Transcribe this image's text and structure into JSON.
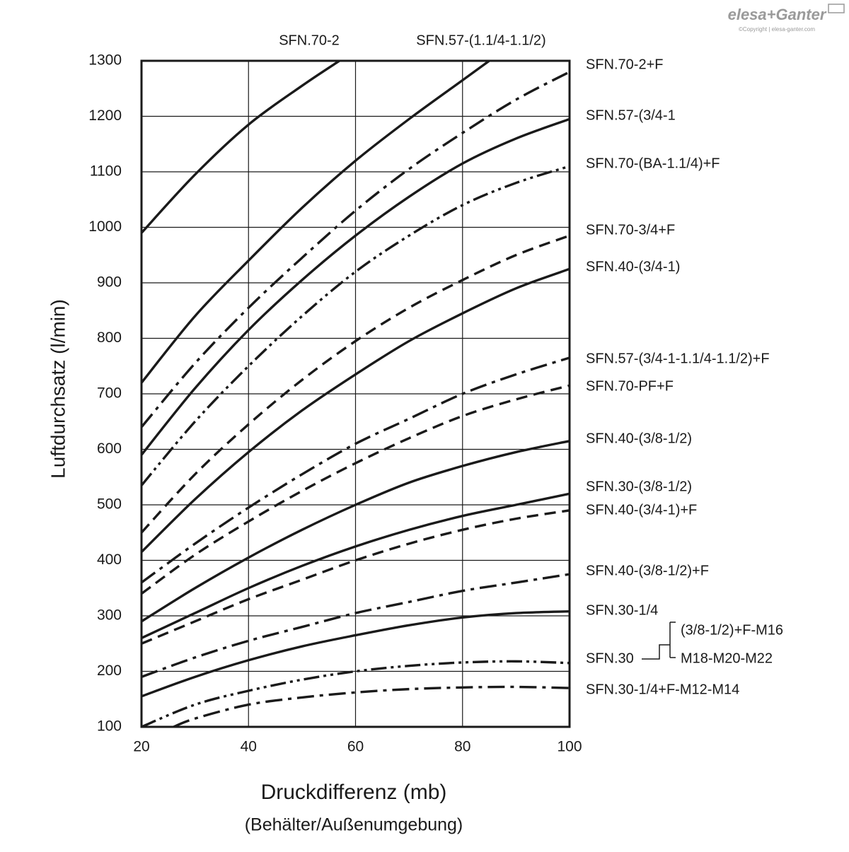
{
  "chart_data": {
    "type": "line",
    "brand": "elesa+Ganter",
    "copyright": "©Copyright | elesa-ganter.com",
    "ylabel": "Luftdurchsatz (l/min)",
    "xlabel": "Druckdifferenz (mb)",
    "xlabel_sub": "(Behälter/Außenumgebung)",
    "xlim": [
      20,
      100
    ],
    "xticks": [
      20,
      40,
      60,
      80,
      100
    ],
    "ylim": [
      100,
      1300
    ],
    "yticks": [
      100,
      200,
      300,
      400,
      500,
      600,
      700,
      800,
      900,
      1000,
      1100,
      1200,
      1300
    ],
    "grid": true,
    "annotations": [
      "SFN.70-2",
      "SFN.57-(1.1/4-1.1/2)",
      "SFN.70-2+F",
      "SFN.57-(3/4-1",
      "SFN.70-(BA-1.1/4)+F",
      "SFN.70-3/4+F",
      "SFN.40-(3/4-1)",
      "SFN.57-(3/4-1-1.1/4-1.1/2)+F",
      "SFN.70-PF+F",
      "SFN.40-(3/8-1/2)",
      "SFN.30-(3/8-1/2)",
      "SFN.40-(3/4-1)+F",
      "SFN.40-(3/8-1/2)+F",
      "SFN.30-1/4",
      "(3/8-1/2)+F-M16",
      "SFN.30",
      "M18-M20-M22",
      "SFN.30-1/4+F-M12-M14"
    ],
    "series": [
      {
        "color": "#1a1a1a",
        "dash": "solid",
        "x": [
          20,
          30,
          40,
          50,
          57
        ],
        "values": [
          990,
          1095,
          1185,
          1255,
          1300
        ]
      },
      {
        "color": "#1a1a1a",
        "dash": "solid",
        "x": [
          20,
          30,
          40,
          50,
          60,
          70,
          80,
          85
        ],
        "values": [
          720,
          840,
          940,
          1035,
          1120,
          1195,
          1265,
          1300
        ]
      },
      {
        "color": "#1a1a1a",
        "dash": "dashdot",
        "x": [
          20,
          30,
          40,
          50,
          60,
          70,
          80,
          90,
          100
        ],
        "values": [
          640,
          755,
          855,
          945,
          1030,
          1105,
          1170,
          1230,
          1280
        ]
      },
      {
        "color": "#1a1a1a",
        "dash": "solid",
        "x": [
          20,
          30,
          40,
          50,
          60,
          70,
          80,
          90,
          100
        ],
        "values": [
          590,
          710,
          815,
          905,
          985,
          1055,
          1115,
          1160,
          1195
        ]
      },
      {
        "color": "#1a1a1a",
        "dash": "dashdotdot",
        "x": [
          20,
          30,
          40,
          50,
          60,
          70,
          80,
          90,
          100
        ],
        "values": [
          535,
          650,
          750,
          840,
          920,
          985,
          1040,
          1080,
          1110
        ]
      },
      {
        "color": "#1a1a1a",
        "dash": "dash",
        "x": [
          20,
          30,
          40,
          50,
          60,
          70,
          80,
          90,
          100
        ],
        "values": [
          450,
          555,
          645,
          725,
          795,
          855,
          905,
          950,
          985
        ]
      },
      {
        "color": "#1a1a1a",
        "dash": "solid",
        "x": [
          20,
          30,
          40,
          50,
          60,
          70,
          80,
          90,
          100
        ],
        "values": [
          415,
          510,
          595,
          670,
          735,
          795,
          845,
          890,
          925
        ]
      },
      {
        "color": "#1a1a1a",
        "dash": "dashdot",
        "x": [
          20,
          30,
          40,
          50,
          60,
          70,
          80,
          90,
          100
        ],
        "values": [
          360,
          430,
          495,
          555,
          610,
          655,
          700,
          735,
          765
        ]
      },
      {
        "color": "#1a1a1a",
        "dash": "dash",
        "x": [
          20,
          30,
          40,
          50,
          60,
          70,
          80,
          90,
          100
        ],
        "values": [
          340,
          410,
          470,
          525,
          575,
          620,
          660,
          690,
          715
        ]
      },
      {
        "color": "#1a1a1a",
        "dash": "solid",
        "x": [
          20,
          30,
          40,
          50,
          60,
          70,
          80,
          90,
          100
        ],
        "values": [
          290,
          350,
          405,
          455,
          500,
          540,
          570,
          595,
          615
        ]
      },
      {
        "color": "#1a1a1a",
        "dash": "solid",
        "x": [
          20,
          30,
          40,
          50,
          60,
          70,
          80,
          90,
          100
        ],
        "values": [
          260,
          305,
          350,
          390,
          425,
          455,
          480,
          500,
          520
        ]
      },
      {
        "color": "#1a1a1a",
        "dash": "dash",
        "x": [
          20,
          30,
          40,
          50,
          60,
          70,
          80,
          90,
          100
        ],
        "values": [
          250,
          290,
          330,
          365,
          400,
          430,
          455,
          475,
          490
        ]
      },
      {
        "color": "#1a1a1a",
        "dash": "dashdot",
        "x": [
          20,
          30,
          40,
          50,
          60,
          70,
          80,
          90,
          100
        ],
        "values": [
          190,
          225,
          255,
          280,
          305,
          325,
          345,
          360,
          375
        ]
      },
      {
        "color": "#1a1a1a",
        "dash": "solid",
        "x": [
          20,
          30,
          40,
          50,
          60,
          70,
          80,
          90,
          100
        ],
        "values": [
          155,
          190,
          220,
          245,
          265,
          283,
          297,
          305,
          308
        ]
      },
      {
        "color": "#1a1a1a",
        "dash": "dashdotdot",
        "x": [
          20,
          30,
          40,
          50,
          60,
          70,
          80,
          90,
          100
        ],
        "values": [
          100,
          140,
          165,
          185,
          200,
          210,
          216,
          218,
          215
        ]
      },
      {
        "color": "#1a1a1a",
        "dash": "dashdot",
        "x": [
          26,
          30,
          40,
          50,
          60,
          70,
          80,
          90,
          100
        ],
        "values": [
          100,
          115,
          140,
          153,
          162,
          168,
          171,
          172,
          170
        ]
      }
    ]
  }
}
